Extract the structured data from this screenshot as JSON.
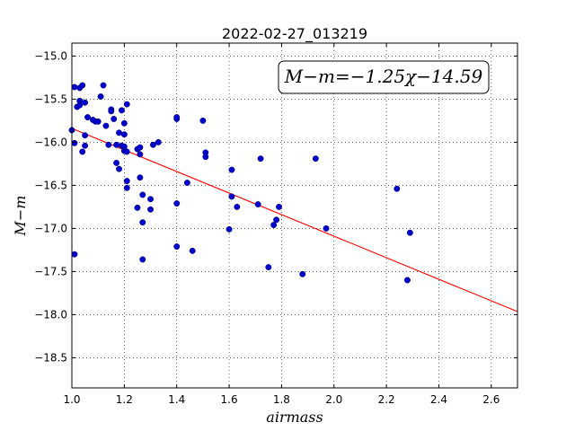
{
  "chart_data": {
    "type": "scatter",
    "title": "2022-02-27_013219",
    "xlabel": "airmass",
    "ylabel": "M−m",
    "xlim": [
      1.0,
      2.7
    ],
    "ylim": [
      -18.85,
      -14.85
    ],
    "y_inverted": true,
    "grid": true,
    "xticks": [
      1.0,
      1.2,
      1.4,
      1.6,
      1.8,
      2.0,
      2.2,
      2.4,
      2.6
    ],
    "xtick_labels": [
      "1.0",
      "1.2",
      "1.4",
      "1.6",
      "1.8",
      "2.0",
      "2.2",
      "2.4",
      "2.6"
    ],
    "yticks": [
      -15.0,
      -15.5,
      -16.0,
      -16.5,
      -17.0,
      -17.5,
      -18.0,
      -18.5
    ],
    "ytick_labels": [
      "−15.0",
      "−15.5",
      "−16.0",
      "−16.5",
      "−17.0",
      "−17.5",
      "−18.0",
      "−18.5"
    ],
    "annotation": "M−m=−1.25χ−14.59",
    "annotation_position": "top-right",
    "fit_line": {
      "slope": -1.25,
      "intercept": -14.59,
      "color": "#ff0000"
    },
    "point_color": "#0000cc",
    "points": [
      {
        "x": 1.0,
        "y": -15.86
      },
      {
        "x": 1.01,
        "y": -15.36
      },
      {
        "x": 1.01,
        "y": -16.01
      },
      {
        "x": 1.01,
        "y": -17.3
      },
      {
        "x": 1.02,
        "y": -15.59
      },
      {
        "x": 1.03,
        "y": -15.37
      },
      {
        "x": 1.03,
        "y": -15.52
      },
      {
        "x": 1.03,
        "y": -15.57
      },
      {
        "x": 1.04,
        "y": -16.11
      },
      {
        "x": 1.04,
        "y": -15.34
      },
      {
        "x": 1.05,
        "y": -15.92
      },
      {
        "x": 1.05,
        "y": -16.04
      },
      {
        "x": 1.05,
        "y": -15.54
      },
      {
        "x": 1.06,
        "y": -15.71
      },
      {
        "x": 1.08,
        "y": -15.74
      },
      {
        "x": 1.09,
        "y": -15.76
      },
      {
        "x": 1.1,
        "y": -15.76
      },
      {
        "x": 1.11,
        "y": -15.47
      },
      {
        "x": 1.12,
        "y": -15.34
      },
      {
        "x": 1.13,
        "y": -15.81
      },
      {
        "x": 1.14,
        "y": -16.03
      },
      {
        "x": 1.15,
        "y": -15.62
      },
      {
        "x": 1.15,
        "y": -15.64
      },
      {
        "x": 1.16,
        "y": -15.73
      },
      {
        "x": 1.17,
        "y": -16.03
      },
      {
        "x": 1.17,
        "y": -16.24
      },
      {
        "x": 1.18,
        "y": -16.31
      },
      {
        "x": 1.18,
        "y": -15.89
      },
      {
        "x": 1.19,
        "y": -15.63
      },
      {
        "x": 1.19,
        "y": -16.04
      },
      {
        "x": 1.2,
        "y": -16.1
      },
      {
        "x": 1.2,
        "y": -16.05
      },
      {
        "x": 1.2,
        "y": -15.91
      },
      {
        "x": 1.2,
        "y": -15.78
      },
      {
        "x": 1.21,
        "y": -16.45
      },
      {
        "x": 1.21,
        "y": -16.53
      },
      {
        "x": 1.21,
        "y": -15.56
      },
      {
        "x": 1.21,
        "y": -16.11
      },
      {
        "x": 1.25,
        "y": -16.76
      },
      {
        "x": 1.25,
        "y": -16.08
      },
      {
        "x": 1.26,
        "y": -16.06
      },
      {
        "x": 1.26,
        "y": -16.41
      },
      {
        "x": 1.26,
        "y": -16.14
      },
      {
        "x": 1.27,
        "y": -16.61
      },
      {
        "x": 1.27,
        "y": -16.93
      },
      {
        "x": 1.27,
        "y": -17.36
      },
      {
        "x": 1.3,
        "y": -16.66
      },
      {
        "x": 1.3,
        "y": -16.78
      },
      {
        "x": 1.31,
        "y": -16.03
      },
      {
        "x": 1.33,
        "y": -16.0
      },
      {
        "x": 1.4,
        "y": -15.73
      },
      {
        "x": 1.4,
        "y": -15.71
      },
      {
        "x": 1.4,
        "y": -17.21
      },
      {
        "x": 1.4,
        "y": -16.71
      },
      {
        "x": 1.44,
        "y": -16.47
      },
      {
        "x": 1.46,
        "y": -17.26
      },
      {
        "x": 1.5,
        "y": -15.75
      },
      {
        "x": 1.51,
        "y": -16.12
      },
      {
        "x": 1.51,
        "y": -16.17
      },
      {
        "x": 1.6,
        "y": -17.01
      },
      {
        "x": 1.61,
        "y": -16.63
      },
      {
        "x": 1.61,
        "y": -16.32
      },
      {
        "x": 1.63,
        "y": -16.75
      },
      {
        "x": 1.71,
        "y": -16.72
      },
      {
        "x": 1.72,
        "y": -16.19
      },
      {
        "x": 1.75,
        "y": -17.45
      },
      {
        "x": 1.77,
        "y": -16.96
      },
      {
        "x": 1.78,
        "y": -16.9
      },
      {
        "x": 1.79,
        "y": -16.75
      },
      {
        "x": 1.88,
        "y": -17.53
      },
      {
        "x": 1.93,
        "y": -16.19
      },
      {
        "x": 1.97,
        "y": -17.0
      },
      {
        "x": 2.24,
        "y": -16.54
      },
      {
        "x": 2.28,
        "y": -17.6
      },
      {
        "x": 2.29,
        "y": -17.05
      }
    ]
  }
}
